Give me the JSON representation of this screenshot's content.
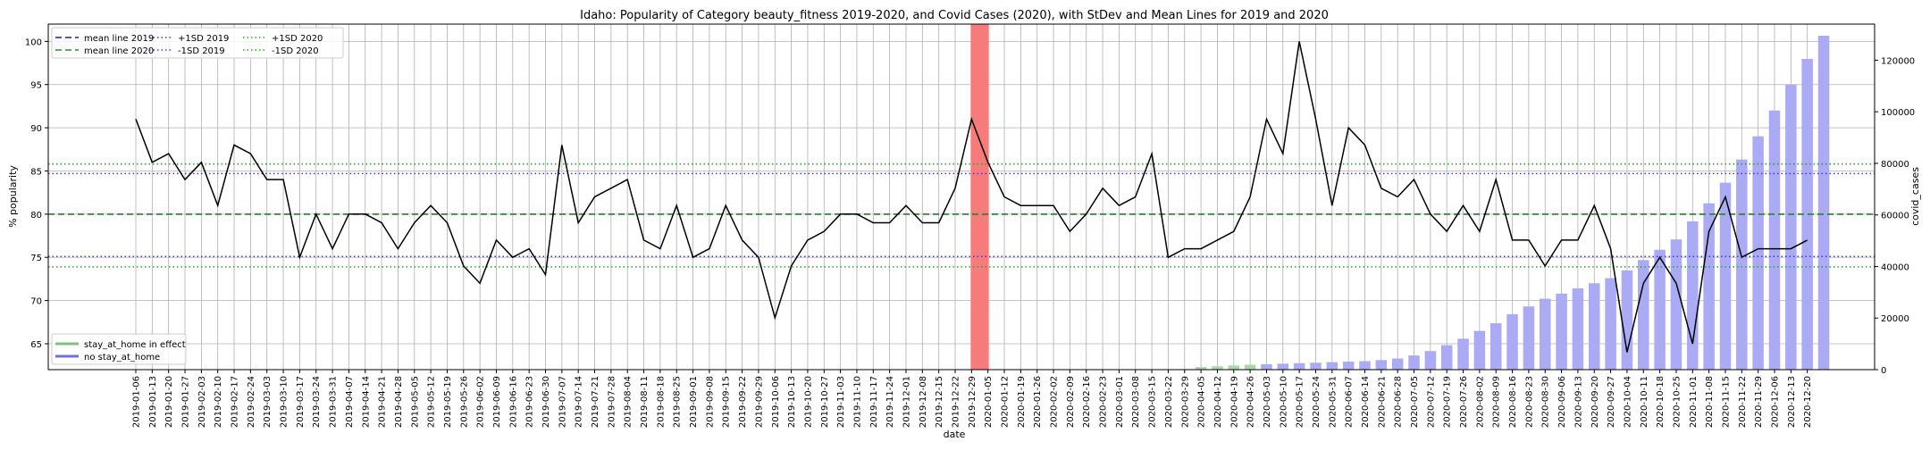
{
  "chart_data": {
    "type": "bar",
    "title": "Idaho: Popularity of Category beauty_fitness 2019-2020, and Covid Cases (2020), with StDev and Mean Lines for 2019 and 2020",
    "xlabel": "date",
    "ylabel": "% popularity",
    "ylabel_right": "covid_cases",
    "ylim": [
      62,
      102
    ],
    "ylim_right": [
      0,
      134000
    ],
    "yticks": [
      65,
      70,
      75,
      80,
      85,
      90,
      95,
      100
    ],
    "yticks_right": [
      0,
      20000,
      40000,
      60000,
      80000,
      100000,
      120000
    ],
    "grid": true,
    "legend_position": "top-left",
    "highlight_band": {
      "start": "2019-12-29",
      "end": "2020-01-05",
      "color": "#f77b7b"
    },
    "dates": [
      "2019-01-06",
      "2019-01-13",
      "2019-01-20",
      "2019-01-27",
      "2019-02-03",
      "2019-02-10",
      "2019-02-17",
      "2019-02-24",
      "2019-03-03",
      "2019-03-10",
      "2019-03-17",
      "2019-03-24",
      "2019-03-31",
      "2019-04-07",
      "2019-04-14",
      "2019-04-21",
      "2019-04-28",
      "2019-05-05",
      "2019-05-12",
      "2019-05-19",
      "2019-05-26",
      "2019-06-02",
      "2019-06-09",
      "2019-06-16",
      "2019-06-23",
      "2019-06-30",
      "2019-07-07",
      "2019-07-14",
      "2019-07-21",
      "2019-07-28",
      "2019-08-04",
      "2019-08-11",
      "2019-08-18",
      "2019-08-25",
      "2019-09-01",
      "2019-09-08",
      "2019-09-15",
      "2019-09-22",
      "2019-09-29",
      "2019-10-06",
      "2019-10-13",
      "2019-10-20",
      "2019-10-27",
      "2019-11-03",
      "2019-11-10",
      "2019-11-17",
      "2019-11-24",
      "2019-12-01",
      "2019-12-08",
      "2019-12-15",
      "2019-12-22",
      "2019-12-29",
      "2020-01-05",
      "2020-01-12",
      "2020-01-19",
      "2020-01-26",
      "2020-02-02",
      "2020-02-09",
      "2020-02-16",
      "2020-02-23",
      "2020-03-01",
      "2020-03-08",
      "2020-03-15",
      "2020-03-22",
      "2020-03-29",
      "2020-04-05",
      "2020-04-12",
      "2020-04-19",
      "2020-04-26",
      "2020-05-03",
      "2020-05-10",
      "2020-05-17",
      "2020-05-24",
      "2020-05-31",
      "2020-06-07",
      "2020-06-14",
      "2020-06-21",
      "2020-06-28",
      "2020-07-05",
      "2020-07-12",
      "2020-07-19",
      "2020-07-26",
      "2020-08-02",
      "2020-08-09",
      "2020-08-16",
      "2020-08-23",
      "2020-08-30",
      "2020-09-06",
      "2020-09-13",
      "2020-09-20",
      "2020-09-27",
      "2020-10-04",
      "2020-10-11",
      "2020-10-18",
      "2020-10-25",
      "2020-11-01",
      "2020-11-08",
      "2020-11-15",
      "2020-11-22",
      "2020-11-29",
      "2020-12-06",
      "2020-12-13",
      "2020-12-20"
    ],
    "popularity": [
      91,
      86,
      87,
      84,
      86,
      81,
      88,
      87,
      84,
      84,
      75,
      80,
      76,
      80,
      80,
      79,
      76,
      79,
      81,
      79,
      74,
      72,
      77,
      75,
      76,
      73,
      88,
      79,
      82,
      83,
      84,
      77,
      76,
      81,
      75,
      76,
      81,
      77,
      75,
      68,
      74,
      77,
      78,
      80,
      80,
      79,
      79,
      81,
      79,
      79,
      83,
      91,
      86,
      82,
      81,
      81,
      81,
      78,
      80,
      83,
      81,
      82,
      87,
      75,
      76,
      76,
      77,
      78,
      82,
      91,
      87,
      100,
      91,
      81,
      90,
      88,
      83,
      82,
      84,
      80,
      78,
      81,
      78,
      84,
      77,
      77,
      74,
      77,
      77,
      81,
      76,
      64,
      72,
      75,
      72,
      65,
      78,
      82,
      75,
      76,
      76,
      76,
      77
    ],
    "covid_cases": [
      0,
      0,
      0,
      0,
      0,
      0,
      0,
      0,
      0,
      0,
      0,
      0,
      0,
      0,
      0,
      0,
      0,
      0,
      0,
      0,
      0,
      0,
      0,
      0,
      0,
      0,
      0,
      0,
      0,
      0,
      0,
      0,
      0,
      0,
      0,
      0,
      0,
      0,
      0,
      0,
      0,
      0,
      0,
      0,
      0,
      0,
      0,
      0,
      0,
      0,
      0,
      0,
      0,
      0,
      0,
      0,
      0,
      0,
      0,
      0,
      0,
      0,
      0,
      0,
      200,
      1000,
      1300,
      1600,
      1900,
      2100,
      2300,
      2500,
      2700,
      2900,
      3100,
      3300,
      3700,
      4300,
      5500,
      7200,
      9500,
      12000,
      15000,
      18000,
      21500,
      24500,
      27500,
      29500,
      31500,
      33500,
      35500,
      38500,
      42500,
      46500,
      50500,
      57500,
      64500,
      72500,
      81500,
      90500,
      100500,
      110500,
      120500,
      129500
    ],
    "stay_at_home_dates": [
      "2020-03-29",
      "2020-04-05",
      "2020-04-12",
      "2020-04-19",
      "2020-04-26"
    ],
    "series": [
      {
        "name": "mean line 2019",
        "value": 80,
        "color": "#1f1f9a",
        "dash": "dashed"
      },
      {
        "name": "mean line 2020",
        "value": 80,
        "color": "#2e8b2e",
        "dash": "dashed"
      },
      {
        "name": "+1SD 2019",
        "value": 84.7,
        "color": "#3a3ad6",
        "dash": "dotted"
      },
      {
        "name": "-1SD 2019",
        "value": 75.1,
        "color": "#3a3ad6",
        "dash": "dotted"
      },
      {
        "name": "+1SD 2020",
        "value": 85.8,
        "color": "#2ea02e",
        "dash": "dotted"
      },
      {
        "name": "-1SD 2020",
        "value": 73.9,
        "color": "#2ea02e",
        "dash": "dotted"
      }
    ],
    "bar_legend": [
      {
        "name": "stay_at_home in effect",
        "color": "#7fc27f"
      },
      {
        "name": "no stay_at_home",
        "color": "#7070e0"
      }
    ],
    "colors": {
      "line": "#000000",
      "bar_no_stay": "#aaaaf5",
      "bar_stay": "#a8d8a8",
      "grid": "#b0b0b0"
    }
  }
}
